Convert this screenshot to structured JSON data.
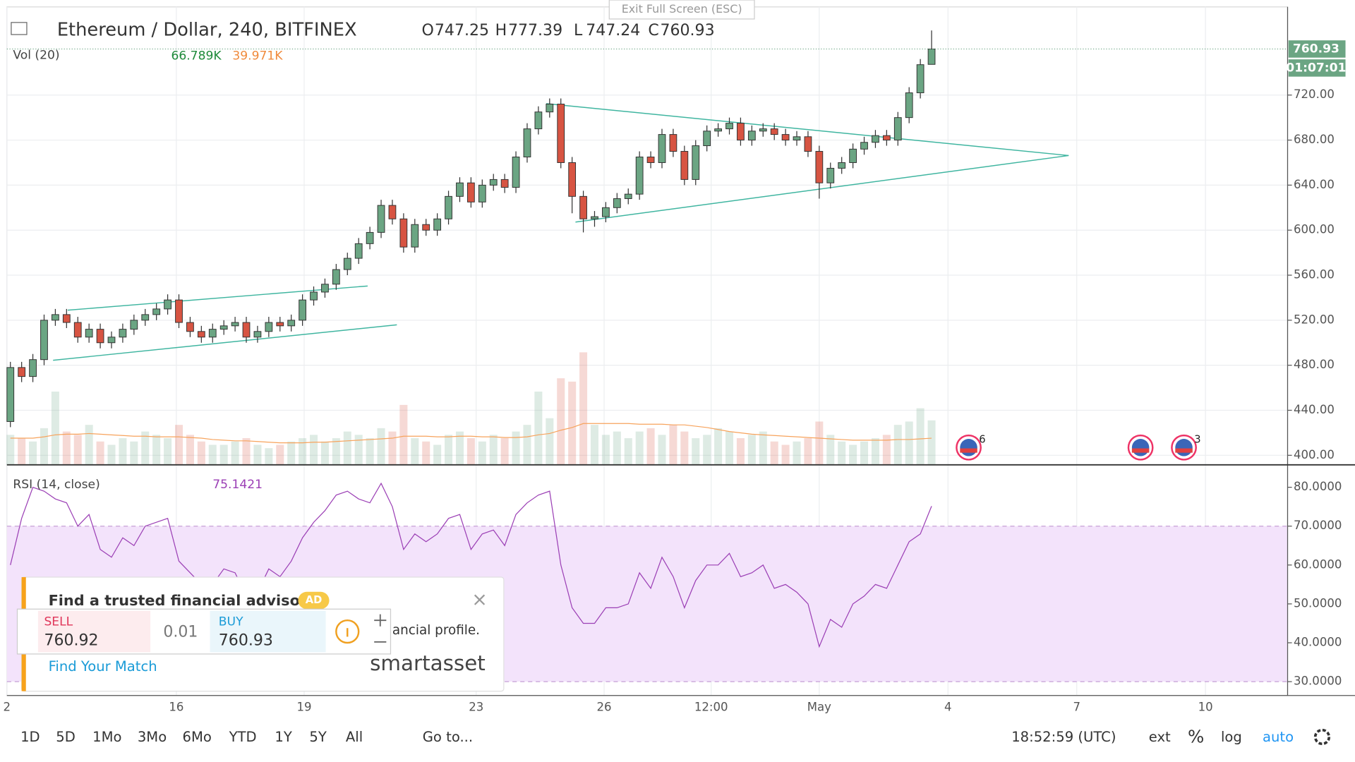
{
  "header": {
    "symbol": "Ethereum / Dollar, 240, BITFINEX",
    "o": "O",
    "h": "H",
    "l": "L",
    "c": "C",
    "exit_fullscreen": "Exit Full Screen (ESC)",
    "countdown": "01:07:01"
  },
  "chart_data": [
    {
      "type": "candlestick",
      "volume_title": "Vol (20)",
      "volume_label": "66.789K",
      "volume_ma_label": "39.971K",
      "x": [
        0,
        1,
        2,
        3,
        4,
        5,
        6,
        7,
        8,
        9,
        10,
        11,
        12,
        13,
        14,
        15,
        16,
        17,
        18,
        19,
        20,
        21,
        22,
        23,
        24,
        25,
        26,
        27,
        28,
        29,
        30,
        31,
        32,
        33,
        34,
        35,
        36,
        37,
        38,
        39,
        40,
        41,
        42,
        43,
        44,
        45,
        46,
        47,
        48,
        49,
        50,
        51,
        52,
        53,
        54,
        55,
        56,
        57,
        58,
        59,
        60,
        61,
        62,
        63,
        64,
        65,
        66,
        67,
        68,
        69,
        70,
        71,
        72,
        73,
        74,
        75,
        76,
        77,
        78,
        79,
        80,
        81,
        82
      ],
      "open": [
        430,
        478,
        470,
        485,
        520,
        525,
        518,
        505,
        512,
        500,
        505,
        512,
        520,
        525,
        530,
        538,
        518,
        510,
        505,
        512,
        515,
        518,
        505,
        510,
        518,
        515,
        520,
        538,
        545,
        552,
        565,
        575,
        588,
        598,
        622,
        610,
        585,
        605,
        600,
        610,
        630,
        642,
        625,
        640,
        645,
        638,
        665,
        690,
        705,
        712,
        660,
        630,
        610,
        612,
        620,
        628,
        632,
        665,
        660,
        685,
        670,
        645,
        675,
        688,
        690,
        695,
        680,
        688,
        690,
        685,
        680,
        683,
        670,
        642,
        655,
        660,
        672,
        678,
        684,
        680,
        700,
        722,
        747.25
      ],
      "high": [
        483,
        483,
        490,
        525,
        530,
        530,
        523,
        517,
        517,
        510,
        517,
        525,
        530,
        535,
        543,
        543,
        523,
        515,
        517,
        520,
        523,
        523,
        515,
        523,
        523,
        525,
        543,
        550,
        557,
        570,
        580,
        593,
        603,
        627,
        627,
        615,
        610,
        610,
        615,
        635,
        647,
        647,
        645,
        650,
        650,
        670,
        695,
        710,
        717,
        717,
        665,
        635,
        617,
        625,
        633,
        637,
        670,
        670,
        690,
        690,
        675,
        680,
        693,
        695,
        700,
        700,
        693,
        695,
        695,
        690,
        688,
        688,
        675,
        660,
        665,
        677,
        683,
        689,
        689,
        705,
        727,
        752,
        777.39
      ],
      "low": [
        425,
        465,
        465,
        480,
        515,
        513,
        500,
        500,
        495,
        495,
        500,
        507,
        515,
        520,
        525,
        513,
        505,
        500,
        500,
        507,
        510,
        500,
        500,
        505,
        510,
        510,
        515,
        533,
        540,
        547,
        560,
        570,
        583,
        593,
        605,
        580,
        580,
        595,
        595,
        605,
        625,
        620,
        620,
        635,
        633,
        633,
        660,
        685,
        700,
        655,
        615,
        598,
        603,
        607,
        615,
        623,
        627,
        655,
        655,
        665,
        640,
        640,
        670,
        683,
        685,
        675,
        675,
        683,
        680,
        675,
        675,
        665,
        628,
        637,
        650,
        655,
        667,
        673,
        675,
        675,
        695,
        717,
        747.24
      ],
      "close": [
        478,
        470,
        485,
        520,
        525,
        518,
        505,
        512,
        500,
        505,
        512,
        520,
        525,
        530,
        538,
        518,
        510,
        505,
        512,
        515,
        518,
        505,
        510,
        518,
        515,
        520,
        538,
        545,
        552,
        565,
        575,
        588,
        598,
        622,
        610,
        585,
        605,
        600,
        610,
        630,
        642,
        625,
        640,
        645,
        638,
        665,
        690,
        705,
        712,
        660,
        630,
        610,
        612,
        620,
        628,
        632,
        665,
        660,
        685,
        670,
        645,
        675,
        688,
        690,
        695,
        680,
        688,
        690,
        685,
        680,
        683,
        670,
        642,
        655,
        660,
        672,
        678,
        684,
        680,
        700,
        722,
        747,
        760.93
      ],
      "volume": [
        45,
        40,
        35,
        55,
        110,
        50,
        45,
        60,
        35,
        30,
        40,
        35,
        50,
        45,
        40,
        60,
        45,
        35,
        30,
        30,
        35,
        40,
        30,
        25,
        30,
        35,
        40,
        45,
        35,
        40,
        50,
        45,
        40,
        55,
        50,
        90,
        40,
        35,
        30,
        45,
        50,
        40,
        35,
        45,
        40,
        50,
        60,
        110,
        70,
        130,
        125,
        169,
        60,
        45,
        50,
        40,
        50,
        55,
        45,
        60,
        50,
        40,
        45,
        55,
        50,
        40,
        45,
        50,
        35,
        30,
        35,
        40,
        65,
        45,
        35,
        30,
        35,
        40,
        45,
        60,
        65,
        85,
        66.789
      ],
      "volume_ma": [
        40,
        40,
        40,
        42,
        45,
        46,
        46,
        47,
        46,
        45,
        44,
        43,
        43,
        42,
        42,
        42,
        41,
        40,
        38,
        37,
        36,
        36,
        35,
        34,
        33,
        33,
        33,
        34,
        34,
        35,
        36,
        37,
        38,
        39,
        40,
        43,
        43,
        43,
        42,
        42,
        43,
        43,
        42,
        42,
        41,
        41,
        42,
        45,
        47,
        52,
        56,
        62,
        62,
        62,
        62,
        62,
        61,
        61,
        61,
        60,
        60,
        58,
        56,
        53,
        50,
        48,
        46,
        45,
        44,
        43,
        42,
        41,
        40,
        39,
        38,
        37,
        37,
        37,
        37,
        38,
        38,
        39,
        39.971
      ],
      "volume_lim": [
        0,
        688
      ],
      "up_color": "#6ba583",
      "down_color": "#d75442",
      "volume_ma_color": "#f7a35c",
      "trendline_color": "#3fb5a0",
      "trendlines": [
        [
          5.1,
          528.9,
          31.8,
          550.4
        ],
        [
          3.8,
          484.4,
          34.4,
          515.9
        ],
        [
          47.7,
          712.4,
          94.2,
          666.3
        ],
        [
          50.3,
          607.2,
          94.2,
          666.3
        ]
      ],
      "events": [
        {
          "x": 85.3,
          "count": 6
        },
        {
          "x": 100.6
        },
        {
          "x": 104.46,
          "count": 3
        }
      ],
      "xlim": [
        -0.31,
        113.69
      ],
      "xticks": [
        {
          "value": -0.31,
          "label": "2"
        },
        {
          "value": 14.77,
          "label": "16"
        },
        {
          "value": 26.15,
          "label": "19"
        },
        {
          "value": 41.46,
          "label": "23"
        },
        {
          "value": 52.85,
          "label": "26"
        },
        {
          "value": 62.38,
          "label": "12:00"
        },
        {
          "value": 72,
          "label": "May"
        },
        {
          "value": 83.46,
          "label": "4"
        },
        {
          "value": 94.92,
          "label": "7"
        },
        {
          "value": 106.38,
          "label": "10"
        }
      ],
      "ylim": [
        391.56,
        798.31
      ],
      "yticks": [
        {
          "value": 400,
          "label": "400.00"
        },
        {
          "value": 440,
          "label": "440.00"
        },
        {
          "value": 480,
          "label": "480.00"
        },
        {
          "value": 520,
          "label": "520.00"
        },
        {
          "value": 560,
          "label": "560.00"
        },
        {
          "value": 600,
          "label": "600.00"
        },
        {
          "value": 640,
          "label": "640.00"
        },
        {
          "value": 680,
          "label": "680.00"
        },
        {
          "value": 720,
          "label": "720.00"
        }
      ],
      "grid": true
    },
    {
      "type": "line",
      "title": "RSI (14, close)",
      "color": "#9b3fb5",
      "band": [
        30,
        70
      ],
      "band_color": "#f3e3fb",
      "values": [
        60,
        72,
        80,
        79,
        77,
        76,
        70,
        73,
        64,
        62,
        67,
        65,
        70,
        71,
        72,
        61,
        58,
        55,
        55,
        59,
        58,
        52,
        53,
        59,
        57,
        61,
        67,
        71,
        74,
        78,
        79,
        77,
        76,
        81,
        75,
        64,
        68,
        66,
        68,
        72,
        73,
        64,
        68,
        69,
        65,
        73,
        76,
        78,
        79,
        60,
        49,
        45,
        45,
        49,
        49,
        50,
        58,
        54,
        62,
        57,
        49,
        56,
        60,
        60,
        63,
        57,
        58,
        60,
        54,
        55,
        53,
        50,
        39,
        46,
        44,
        50,
        52,
        55,
        54,
        60,
        66,
        68,
        75.1421
      ],
      "ylim": [
        26.44,
        85.78
      ],
      "yticks": [
        {
          "value": 30,
          "label": "30.0000"
        },
        {
          "value": 40,
          "label": "40.0000"
        },
        {
          "value": 50,
          "label": "50.0000"
        },
        {
          "value": 60,
          "label": "60.0000"
        },
        {
          "value": 70,
          "label": "70.0000"
        },
        {
          "value": 80,
          "label": "80.0000"
        }
      ]
    }
  ],
  "ad": {
    "title": "Find a trusted financial advisor",
    "badge": "AD",
    "text": "ancial profile.",
    "link": "Find Your Match",
    "brand": "smartasset",
    "close": "×"
  },
  "trade": {
    "sell": "SELL",
    "sell_price": "760.92",
    "qty": "0.01",
    "buy": "BUY",
    "buy_price": "760.93"
  },
  "toolbar": {
    "ranges": [
      "1D",
      "5D",
      "1Mo",
      "3Mo",
      "6Mo",
      "YTD",
      "1Y",
      "5Y",
      "All"
    ],
    "goto": "Go to...",
    "time": "18:52:59 (UTC)",
    "ext": "ext",
    "percent": "%",
    "log": "log",
    "auto": "auto"
  }
}
